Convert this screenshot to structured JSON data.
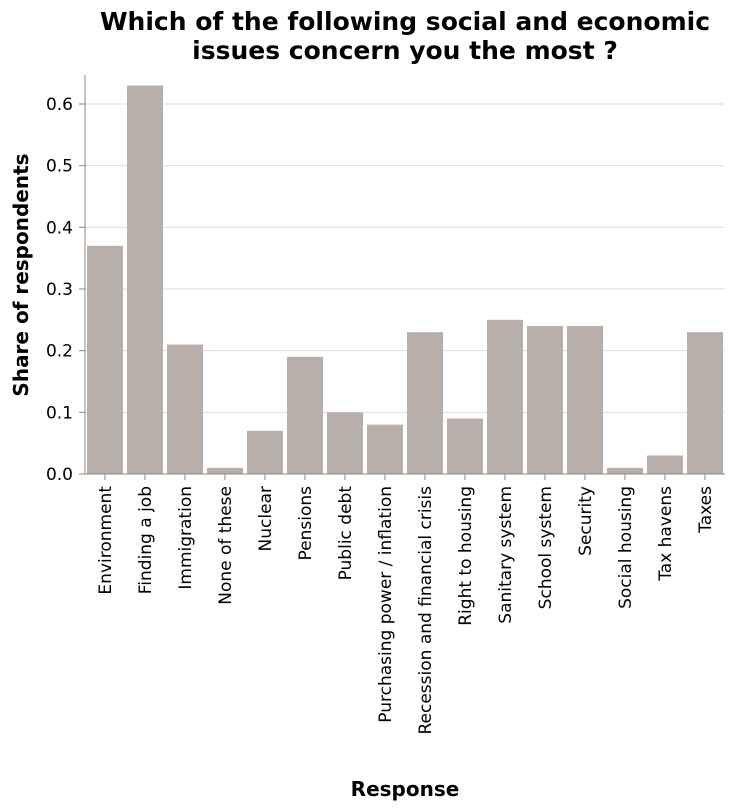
{
  "chart_data": {
    "type": "bar",
    "title": [
      "Which of the following social and economic",
      "issues concern you the most ?"
    ],
    "xlabel": "Response",
    "ylabel": "Share of respondents",
    "categories": [
      "Environment",
      "Finding a job",
      "Immigration",
      "None of these",
      "Nuclear",
      "Pensions",
      "Public debt",
      "Purchasing power / inflation",
      "Recession and financial crisis",
      "Right to housing",
      "Sanitary system",
      "School system",
      "Security",
      "Social housing",
      "Tax havens",
      "Taxes"
    ],
    "values": [
      0.37,
      0.63,
      0.21,
      0.01,
      0.07,
      0.19,
      0.1,
      0.08,
      0.23,
      0.09,
      0.25,
      0.24,
      0.24,
      0.01,
      0.03,
      0.23
    ],
    "ylim": [
      0,
      0.6
    ],
    "yticks": [
      "0.0",
      "0.1",
      "0.2",
      "0.3",
      "0.4",
      "0.5",
      "0.6"
    ],
    "grid": true,
    "bar_color": "#b8aeaa"
  }
}
